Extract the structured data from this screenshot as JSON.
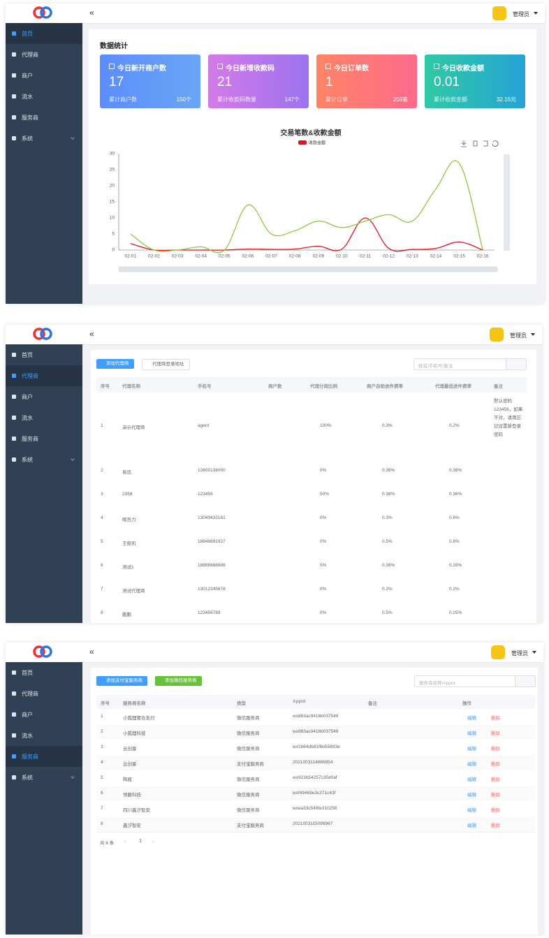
{
  "screens": [
    {
      "menu": [
        "首页",
        "代理商",
        "商户",
        "流水",
        "服务商",
        "系统"
      ],
      "active_menu": 0,
      "user": "管理员",
      "section_title": "数据统计",
      "stats": [
        {
          "title": "今日新开商户数",
          "value": "17",
          "sub_label": "累计商户数",
          "sub_value": "150个",
          "colors": [
            "#5b8dfb",
            "#6aa6f5"
          ]
        },
        {
          "title": "今日新增收款码",
          "value": "21",
          "sub_label": "累计收款码数量",
          "sub_value": "147个",
          "colors": [
            "#d47ae8",
            "#9b73ee"
          ]
        },
        {
          "title": "今日订单数",
          "value": "1",
          "sub_label": "累计订单",
          "sub_value": "203笔",
          "colors": [
            "#ff8466",
            "#fd6a8c"
          ]
        },
        {
          "title": "今日收款金额",
          "value": "0.01",
          "sub_label": "累计收款金额",
          "sub_value": "32.15元",
          "colors": [
            "#30c9a5",
            "#25a3d6"
          ]
        }
      ]
    },
    {
      "menu": [
        "首页",
        "代理商",
        "商户",
        "流水",
        "服务商",
        "系统"
      ],
      "active_menu": 1,
      "user": "管理员",
      "buttons": [
        "添加代理商",
        "代理商登录地址"
      ],
      "search_placeholder": "姓名/手机号/备注",
      "columns": [
        "序号",
        "代理名称",
        "手机号",
        "商户数",
        "代理分润比例",
        "商户自助进件费率",
        "代理最低进件费率",
        "备注"
      ],
      "rows": [
        [
          "1",
          "演示代理商",
          "agent",
          null,
          "100%",
          "0.3%",
          "0.2%",
          "默认密码123456，如果不对，请用忘记设置新登录密码"
        ],
        [
          "2",
          "易迅",
          "13800138000",
          null,
          "0%",
          "0.38%",
          "0.38%",
          null
        ],
        [
          "3",
          "2358",
          "123456",
          null,
          "50%",
          "0.38%",
          "0.36%",
          null
        ],
        [
          "4",
          "喀吾力",
          "13049433161",
          null,
          "0%",
          "0.3%",
          "0.6%",
          null
        ],
        [
          "5",
          "王俊凯",
          "18848891927",
          null,
          "0%",
          "0.5%",
          "0.6%",
          null
        ],
        [
          "6",
          "测试1",
          "18888888888",
          null,
          "5%",
          "0.38%",
          "0.28%",
          null
        ],
        [
          "7",
          "测试代理商",
          "13012345678",
          null,
          "0%",
          "0.2%",
          "0.2%",
          null
        ],
        [
          "8",
          "鹏鹏",
          "123456789",
          null,
          "0%",
          "0.5%",
          "0.25%",
          null
        ]
      ]
    },
    {
      "menu": [
        "首页",
        "代理商",
        "商户",
        "流水",
        "服务商",
        "系统"
      ],
      "active_menu": 4,
      "user": "管理员",
      "buttons": [
        "添加支付宝服务商",
        "添加微信服务商"
      ],
      "search_placeholder": "服务商名称/AppId",
      "columns": [
        "序号",
        "服务商名称",
        "类型",
        "AppId",
        "备注",
        "操作"
      ],
      "rows": [
        [
          "1",
          "小狐狸聚合支付",
          "微信服务商",
          "wx883ac9416b037549"
        ],
        [
          "2",
          "小狐狸科技",
          "微信服务商",
          "wx883ac9416b037549"
        ],
        [
          "3",
          "云创客",
          "微信服务商",
          "wx1b64db81f6b55893e"
        ],
        [
          "4",
          "云创客",
          "支付宝服务商",
          "2021003114866854"
        ],
        [
          "5",
          "陶瓶",
          "微信服务商",
          "wx921b54257c35d0af"
        ],
        [
          "6",
          "领爵科技",
          "微信服务商",
          "wxf49469e3c271c43f"
        ],
        [
          "7",
          "四川鑫汐智安",
          "微信服务商",
          "wxea33c549fe310256"
        ],
        [
          "8",
          "鑫汐智安",
          "支付宝服务商",
          "2021003115099967"
        ]
      ],
      "actions": [
        "编辑",
        "删除"
      ],
      "pagination": {
        "total": "共 8 条",
        "page": 1
      }
    }
  ],
  "chart_data": {
    "type": "line",
    "title": "交易笔数&收款金额",
    "categories": [
      "02-01",
      "02-02",
      "02-03",
      "02-04",
      "02-05",
      "02-06",
      "02-07",
      "02-08",
      "02-09",
      "02-10",
      "02-11",
      "02-12",
      "02-13",
      "02-14",
      "02-15",
      "02-16"
    ],
    "series": [
      {
        "name": "收款金额",
        "color": "#e0141e",
        "values": [
          2,
          0,
          0,
          0,
          0,
          0.3,
          0.2,
          0.3,
          1.2,
          0.3,
          10,
          0.5,
          0.2,
          0.5,
          2.5,
          0
        ]
      },
      {
        "color": "#91c73e",
        "values": [
          5,
          0,
          0,
          1,
          0,
          14,
          5,
          6,
          9,
          7,
          9,
          11,
          9,
          19,
          27,
          0
        ]
      }
    ],
    "ylim": [
      0,
      30
    ],
    "yticks": [
      0,
      5,
      10,
      15,
      20,
      25,
      30
    ],
    "grid": false
  }
}
